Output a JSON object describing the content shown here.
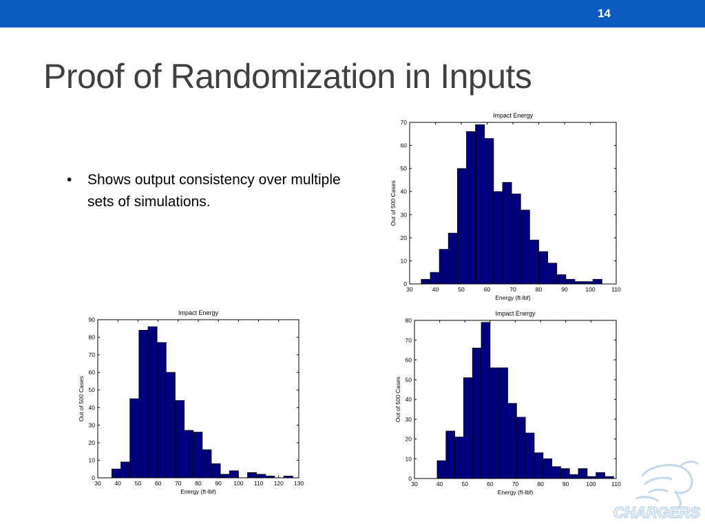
{
  "slide": {
    "number": "14",
    "title": "Proof of Randomization in Inputs",
    "bullets": [
      "Shows output consistency over multiple sets of simulations."
    ],
    "brand_color": "#0a5cbf",
    "logo_text": "CHARGERS"
  },
  "chart_data": [
    {
      "type": "bar",
      "title": "Impact Energy",
      "xlabel": "Energy (ft-lbf)",
      "ylabel": "Out of 500 Cases",
      "xlim": [
        30,
        110
      ],
      "ylim": [
        0,
        70
      ],
      "xticks": [
        30,
        40,
        50,
        60,
        70,
        80,
        90,
        100,
        110
      ],
      "yticks": [
        0,
        10,
        20,
        30,
        40,
        50,
        60,
        70
      ],
      "bin_width": 3.5,
      "bin_start": 34.5,
      "values": [
        2,
        5,
        15,
        22,
        50,
        66,
        69,
        63,
        40,
        44,
        39,
        32,
        19,
        14,
        9,
        4,
        2,
        1,
        1,
        2
      ],
      "bar_color": "#00007f",
      "grid": false
    },
    {
      "type": "bar",
      "title": "Impact Energy",
      "xlabel": "Energy (ft-lbf)",
      "ylabel": "Out of 500 Cases",
      "xlim": [
        30,
        130
      ],
      "ylim": [
        0,
        90
      ],
      "xticks": [
        30,
        40,
        50,
        60,
        70,
        80,
        90,
        100,
        110,
        120,
        130
      ],
      "yticks": [
        0,
        10,
        20,
        30,
        40,
        50,
        60,
        70,
        80,
        90
      ],
      "bin_width": 4.5,
      "bin_start": 37,
      "values": [
        5,
        9,
        45,
        84,
        86,
        77,
        60,
        44,
        27,
        26,
        16,
        8,
        2,
        4,
        0,
        3,
        2,
        1,
        0,
        1
      ],
      "bar_color": "#00007f",
      "grid": false
    },
    {
      "type": "bar",
      "title": "Impact Energy",
      "xlabel": "Energy (ft-lbf)",
      "ylabel": "Out of 500 Cases",
      "xlim": [
        30,
        110
      ],
      "ylim": [
        0,
        80
      ],
      "xticks": [
        30,
        40,
        50,
        60,
        70,
        80,
        90,
        100,
        110
      ],
      "yticks": [
        0,
        10,
        20,
        30,
        40,
        50,
        60,
        70,
        80
      ],
      "bin_width": 3.5,
      "bin_start": 39,
      "values": [
        9,
        24,
        21,
        51,
        66,
        79,
        56,
        56,
        38,
        31,
        23,
        13,
        10,
        6,
        5,
        2,
        5,
        1,
        3,
        1
      ],
      "bar_color": "#00007f",
      "grid": false
    }
  ]
}
